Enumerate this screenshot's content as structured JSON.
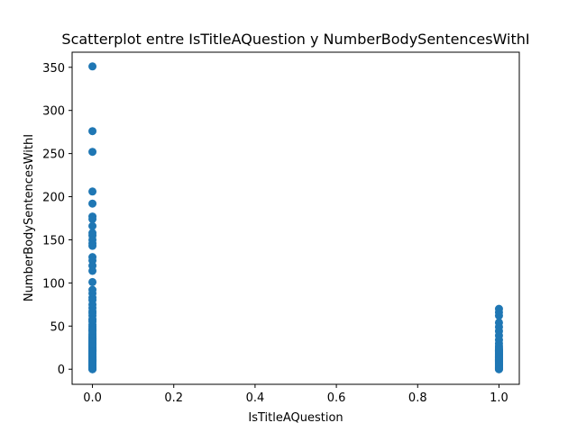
{
  "chart_data": {
    "type": "scatter",
    "title": "Scatterplot entre IsTitleAQuestion y NumberBodySentencesWithI",
    "xlabel": "IsTitleAQuestion",
    "ylabel": "NumberBodySentencesWithI",
    "xlim": [
      -0.05,
      1.05
    ],
    "ylim": [
      -17.5,
      367.5
    ],
    "grid": false,
    "marker_color": "#1f77b4",
    "x_ticks": [
      0.0,
      0.2,
      0.4,
      0.6,
      0.8,
      1.0
    ],
    "x_tick_labels": [
      "0.0",
      "0.2",
      "0.4",
      "0.6",
      "0.8",
      "1.0"
    ],
    "y_ticks": [
      0,
      50,
      100,
      150,
      200,
      250,
      300,
      350
    ],
    "y_tick_labels": [
      "0",
      "50",
      "100",
      "150",
      "200",
      "250",
      "300",
      "350"
    ],
    "series": [
      {
        "x": [
          0,
          0,
          0,
          0,
          0,
          0,
          0,
          0,
          0,
          0,
          0,
          0,
          0,
          0,
          0,
          0,
          0,
          0,
          0,
          0,
          0,
          0,
          0,
          0,
          0,
          0,
          0,
          0,
          0,
          0,
          0,
          0,
          0,
          0,
          0,
          0,
          0,
          0,
          0,
          0,
          0,
          0,
          0,
          0,
          0,
          0,
          0,
          0,
          0,
          0,
          0,
          0,
          0,
          0,
          0,
          0,
          0,
          0,
          0,
          0,
          0,
          0,
          0,
          0,
          0,
          0,
          0,
          0,
          0,
          0,
          0,
          0,
          0,
          0,
          0,
          0,
          0,
          0,
          0,
          0,
          0,
          0,
          0,
          0,
          0,
          0,
          0,
          0,
          0,
          0,
          0,
          0,
          0,
          0,
          0,
          0,
          0,
          0,
          0,
          0,
          0,
          0,
          0,
          0,
          0,
          0,
          0,
          0,
          0,
          0,
          1,
          1,
          1,
          1,
          1,
          1,
          1,
          1,
          1,
          1,
          1,
          1,
          1,
          1,
          1,
          1,
          1,
          1,
          1,
          1,
          1,
          1,
          1,
          1,
          1,
          1,
          1,
          1,
          1,
          1,
          1,
          1,
          1,
          1,
          1,
          1,
          1,
          1,
          1,
          1,
          1,
          1,
          1,
          1,
          1,
          1,
          1,
          1,
          1,
          1,
          1,
          1,
          1,
          1,
          1
        ],
        "y": [
          351,
          276,
          252,
          206,
          192,
          177,
          174,
          166,
          158,
          155,
          150,
          146,
          143,
          130,
          126,
          120,
          114,
          101,
          92,
          88,
          83,
          80,
          75,
          71,
          67,
          65,
          62,
          58,
          55,
          52,
          50,
          48,
          46,
          44,
          42,
          40,
          38,
          37,
          36,
          35,
          34,
          33,
          32,
          31,
          30,
          29,
          28,
          27,
          26,
          25,
          24,
          23,
          22,
          21,
          20,
          19,
          18,
          17,
          16,
          15,
          14,
          13,
          12,
          11,
          10,
          9,
          8,
          7,
          6,
          5,
          4,
          3,
          2,
          1,
          0,
          0,
          1,
          2,
          3,
          4,
          5,
          6,
          7,
          8,
          9,
          10,
          11,
          12,
          13,
          14,
          15,
          16,
          17,
          18,
          19,
          20,
          21,
          22,
          23,
          24,
          25,
          26,
          27,
          28,
          29,
          30,
          35,
          40,
          45,
          57,
          70,
          66,
          62,
          54,
          49,
          44,
          39,
          34,
          30,
          27,
          25,
          22,
          20,
          18,
          16,
          15,
          14,
          13,
          12,
          11,
          10,
          9,
          8,
          7,
          6,
          5,
          4,
          3,
          2,
          1,
          0,
          0,
          1,
          2,
          3,
          4,
          5,
          6,
          7,
          8,
          9,
          10,
          11,
          12,
          13,
          14,
          15,
          16,
          17,
          18,
          19,
          20,
          21,
          22,
          23
        ]
      }
    ]
  }
}
